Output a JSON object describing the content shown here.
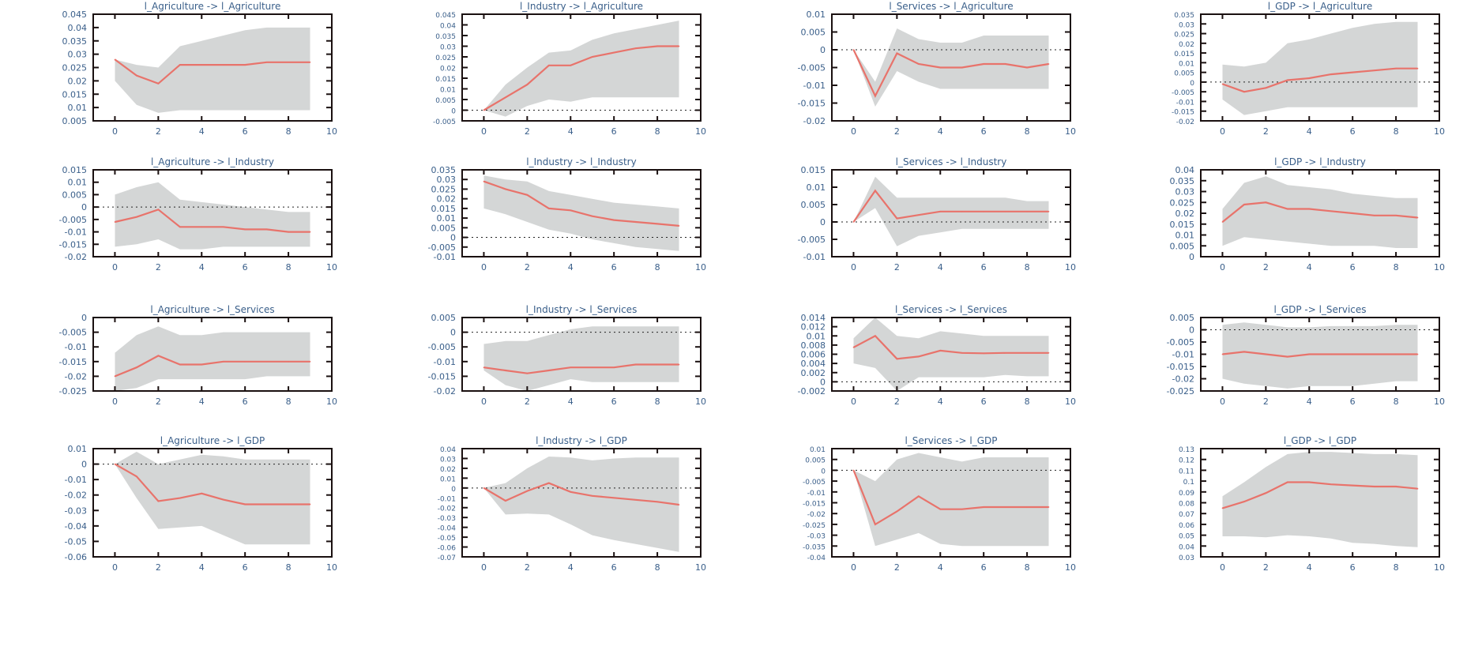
{
  "colors": {
    "response_line": "#e8736b",
    "band": "#d4d6d6",
    "axis": "#1a1010",
    "tick_label": "#3a5f8a",
    "title": "#3a5f8a"
  },
  "chart_data": [
    {
      "type": "area",
      "title": "l_Agriculture -> l_Agriculture",
      "x": [
        0,
        1,
        2,
        3,
        4,
        5,
        6,
        7,
        8,
        9
      ],
      "response": [
        0.028,
        0.022,
        0.019,
        0.026,
        0.026,
        0.026,
        0.026,
        0.027,
        0.027,
        0.027
      ],
      "upper": [
        0.028,
        0.026,
        0.025,
        0.033,
        0.035,
        0.037,
        0.039,
        0.04,
        0.04,
        0.04
      ],
      "lower": [
        0.02,
        0.011,
        0.008,
        0.009,
        0.009,
        0.009,
        0.009,
        0.009,
        0.009,
        0.009
      ],
      "xlim": [
        -1,
        10
      ],
      "ylim": [
        0.005,
        0.045
      ],
      "xticks": [
        "0",
        "2",
        "4",
        "6",
        "8",
        "10"
      ],
      "yticks": [
        "0.005",
        "0.01",
        "0.015",
        "0.02",
        "0.025",
        "0.03",
        "0.035",
        "0.04",
        "0.045"
      ],
      "zero_line": false
    },
    {
      "type": "area",
      "title": "l_Industry -> l_Agriculture",
      "x": [
        0,
        1,
        2,
        3,
        4,
        5,
        6,
        7,
        8,
        9
      ],
      "response": [
        0.0,
        0.006,
        0.012,
        0.021,
        0.021,
        0.025,
        0.027,
        0.029,
        0.03,
        0.03
      ],
      "upper": [
        0.0,
        0.012,
        0.02,
        0.027,
        0.028,
        0.033,
        0.036,
        0.038,
        0.04,
        0.042
      ],
      "lower": [
        0.0,
        -0.003,
        0.002,
        0.005,
        0.004,
        0.006,
        0.006,
        0.006,
        0.006,
        0.006
      ],
      "xlim": [
        -1,
        10
      ],
      "ylim": [
        -0.005,
        0.045
      ],
      "xticks": [
        "0",
        "2",
        "4",
        "6",
        "8",
        "10"
      ],
      "yticks": [
        "-0.005",
        "0",
        "0.005",
        "0.01",
        "0.015",
        "0.02",
        "0.025",
        "0.03",
        "0.035",
        "0.04",
        "0.045"
      ],
      "zero_line": true
    },
    {
      "type": "area",
      "title": "l_Services -> l_Agriculture",
      "x": [
        0,
        1,
        2,
        3,
        4,
        5,
        6,
        7,
        8,
        9
      ],
      "response": [
        0.0,
        -0.013,
        -0.001,
        -0.004,
        -0.005,
        -0.005,
        -0.004,
        -0.004,
        -0.005,
        -0.004
      ],
      "upper": [
        0.0,
        -0.009,
        0.006,
        0.003,
        0.002,
        0.002,
        0.004,
        0.004,
        0.004,
        0.004
      ],
      "lower": [
        0.0,
        -0.016,
        -0.006,
        -0.009,
        -0.011,
        -0.011,
        -0.011,
        -0.011,
        -0.011,
        -0.011
      ],
      "xlim": [
        -1,
        10
      ],
      "ylim": [
        -0.02,
        0.01
      ],
      "xticks": [
        "0",
        "2",
        "4",
        "6",
        "8",
        "10"
      ],
      "yticks": [
        "-0.02",
        "-0.015",
        "-0.01",
        "-0.005",
        "0",
        "0.005",
        "0.01"
      ],
      "zero_line": true
    },
    {
      "type": "area",
      "title": "l_GDP -> l_Agriculture",
      "x": [
        0,
        1,
        2,
        3,
        4,
        5,
        6,
        7,
        8,
        9
      ],
      "response": [
        -0.001,
        -0.005,
        -0.003,
        0.001,
        0.002,
        0.004,
        0.005,
        0.006,
        0.007,
        0.007
      ],
      "upper": [
        0.009,
        0.008,
        0.01,
        0.02,
        0.022,
        0.025,
        0.028,
        0.03,
        0.031,
        0.031
      ],
      "lower": [
        -0.009,
        -0.017,
        -0.015,
        -0.013,
        -0.013,
        -0.013,
        -0.013,
        -0.013,
        -0.013,
        -0.013
      ],
      "xlim": [
        -1,
        10
      ],
      "ylim": [
        -0.02,
        0.035
      ],
      "xticks": [
        "0",
        "2",
        "4",
        "6",
        "8",
        "10"
      ],
      "yticks": [
        "-0.02",
        "-0.015",
        "-0.01",
        "-0.005",
        "0",
        "0.005",
        "0.01",
        "0.015",
        "0.02",
        "0.025",
        "0.03",
        "0.035"
      ],
      "zero_line": true
    },
    {
      "type": "area",
      "title": "l_Agriculture -> l_Industry",
      "x": [
        0,
        1,
        2,
        3,
        4,
        5,
        6,
        7,
        8,
        9
      ],
      "response": [
        -0.006,
        -0.004,
        -0.001,
        -0.008,
        -0.008,
        -0.008,
        -0.009,
        -0.009,
        -0.01,
        -0.01
      ],
      "upper": [
        0.005,
        0.008,
        0.01,
        0.003,
        0.002,
        0.001,
        0.0,
        -0.001,
        -0.002,
        -0.002
      ],
      "lower": [
        -0.016,
        -0.015,
        -0.013,
        -0.017,
        -0.017,
        -0.016,
        -0.016,
        -0.016,
        -0.016,
        -0.016
      ],
      "xlim": [
        -1,
        10
      ],
      "ylim": [
        -0.02,
        0.015
      ],
      "xticks": [
        "0",
        "2",
        "4",
        "6",
        "8",
        "10"
      ],
      "yticks": [
        "-0.02",
        "-0.015",
        "-0.01",
        "-0.005",
        "0",
        "0.005",
        "0.01",
        "0.015"
      ],
      "zero_line": true
    },
    {
      "type": "area",
      "title": "l_Industry -> l_Industry",
      "x": [
        0,
        1,
        2,
        3,
        4,
        5,
        6,
        7,
        8,
        9
      ],
      "response": [
        0.029,
        0.025,
        0.022,
        0.015,
        0.014,
        0.011,
        0.009,
        0.008,
        0.007,
        0.006
      ],
      "upper": [
        0.032,
        0.03,
        0.029,
        0.024,
        0.022,
        0.02,
        0.018,
        0.017,
        0.016,
        0.015
      ],
      "lower": [
        0.015,
        0.012,
        0.008,
        0.004,
        0.002,
        -0.001,
        -0.003,
        -0.005,
        -0.006,
        -0.007
      ],
      "xlim": [
        -1,
        10
      ],
      "ylim": [
        -0.01,
        0.035
      ],
      "xticks": [
        "0",
        "2",
        "4",
        "6",
        "8",
        "10"
      ],
      "yticks": [
        "-0.01",
        "-0.005",
        "0",
        "0.005",
        "0.01",
        "0.015",
        "0.02",
        "0.025",
        "0.03",
        "0.035"
      ],
      "zero_line": true
    },
    {
      "type": "area",
      "title": "l_Services -> l_Industry",
      "x": [
        0,
        1,
        2,
        3,
        4,
        5,
        6,
        7,
        8,
        9
      ],
      "response": [
        0.0,
        0.009,
        0.001,
        0.002,
        0.003,
        0.003,
        0.003,
        0.003,
        0.003,
        0.003
      ],
      "upper": [
        0.0,
        0.013,
        0.007,
        0.007,
        0.007,
        0.007,
        0.007,
        0.007,
        0.006,
        0.006
      ],
      "lower": [
        0.0,
        0.004,
        -0.007,
        -0.004,
        -0.003,
        -0.002,
        -0.002,
        -0.002,
        -0.002,
        -0.002
      ],
      "xlim": [
        -1,
        10
      ],
      "ylim": [
        -0.01,
        0.015
      ],
      "xticks": [
        "0",
        "2",
        "4",
        "6",
        "8",
        "10"
      ],
      "yticks": [
        "-0.01",
        "-0.005",
        "0",
        "0.005",
        "0.01",
        "0.015"
      ],
      "zero_line": true
    },
    {
      "type": "area",
      "title": "l_GDP -> l_Industry",
      "x": [
        0,
        1,
        2,
        3,
        4,
        5,
        6,
        7,
        8,
        9
      ],
      "response": [
        0.016,
        0.024,
        0.025,
        0.022,
        0.022,
        0.021,
        0.02,
        0.019,
        0.019,
        0.018
      ],
      "upper": [
        0.022,
        0.034,
        0.037,
        0.033,
        0.032,
        0.031,
        0.029,
        0.028,
        0.027,
        0.027
      ],
      "lower": [
        0.005,
        0.009,
        0.008,
        0.007,
        0.006,
        0.005,
        0.005,
        0.005,
        0.004,
        0.004
      ],
      "xlim": [
        -1,
        10
      ],
      "ylim": [
        0,
        0.04
      ],
      "xticks": [
        "0",
        "2",
        "4",
        "6",
        "8",
        "10"
      ],
      "yticks": [
        "0",
        "0.005",
        "0.01",
        "0.015",
        "0.02",
        "0.025",
        "0.03",
        "0.035",
        "0.04"
      ],
      "zero_line": false
    },
    {
      "type": "area",
      "title": "l_Agriculture -> l_Services",
      "x": [
        0,
        1,
        2,
        3,
        4,
        5,
        6,
        7,
        8,
        9
      ],
      "response": [
        -0.02,
        -0.017,
        -0.013,
        -0.016,
        -0.016,
        -0.015,
        -0.015,
        -0.015,
        -0.015,
        -0.015
      ],
      "upper": [
        -0.012,
        -0.006,
        -0.003,
        -0.006,
        -0.006,
        -0.005,
        -0.005,
        -0.005,
        -0.005,
        -0.005
      ],
      "lower": [
        -0.025,
        -0.024,
        -0.021,
        -0.021,
        -0.021,
        -0.021,
        -0.021,
        -0.02,
        -0.02,
        -0.02
      ],
      "xlim": [
        -1,
        10
      ],
      "ylim": [
        -0.025,
        0
      ],
      "xticks": [
        "0",
        "2",
        "4",
        "6",
        "8",
        "10"
      ],
      "yticks": [
        "-0.025",
        "-0.02",
        "-0.015",
        "-0.01",
        "-0.005",
        "0"
      ],
      "zero_line": false
    },
    {
      "type": "area",
      "title": "l_Industry -> l_Services",
      "x": [
        0,
        1,
        2,
        3,
        4,
        5,
        6,
        7,
        8,
        9
      ],
      "response": [
        -0.012,
        -0.013,
        -0.014,
        -0.013,
        -0.012,
        -0.012,
        -0.012,
        -0.011,
        -0.011,
        -0.011
      ],
      "upper": [
        -0.004,
        -0.003,
        -0.003,
        -0.001,
        0.001,
        0.002,
        0.002,
        0.002,
        0.002,
        0.002
      ],
      "lower": [
        -0.013,
        -0.018,
        -0.02,
        -0.018,
        -0.016,
        -0.017,
        -0.017,
        -0.017,
        -0.017,
        -0.017
      ],
      "xlim": [
        -1,
        10
      ],
      "ylim": [
        -0.02,
        0.005
      ],
      "xticks": [
        "0",
        "2",
        "4",
        "6",
        "8",
        "10"
      ],
      "yticks": [
        "-0.02",
        "-0.015",
        "-0.01",
        "-0.005",
        "0",
        "0.005"
      ],
      "zero_line": true
    },
    {
      "type": "area",
      "title": "l_Services -> l_Services",
      "x": [
        0,
        1,
        2,
        3,
        4,
        5,
        6,
        7,
        8,
        9
      ],
      "response": [
        0.0075,
        0.01,
        0.005,
        0.0055,
        0.0068,
        0.0063,
        0.0062,
        0.0063,
        0.0063,
        0.0063
      ],
      "upper": [
        0.0095,
        0.014,
        0.01,
        0.0095,
        0.011,
        0.0105,
        0.01,
        0.01,
        0.01,
        0.01
      ],
      "lower": [
        0.004,
        0.003,
        -0.002,
        0.001,
        0.001,
        0.001,
        0.001,
        0.0015,
        0.0012,
        0.0012
      ],
      "xlim": [
        -1,
        10
      ],
      "ylim": [
        -0.002,
        0.014
      ],
      "xticks": [
        "0",
        "2",
        "4",
        "6",
        "8",
        "10"
      ],
      "yticks": [
        "-0.002",
        "0",
        "0.002",
        "0.004",
        "0.006",
        "0.008",
        "0.01",
        "0.012",
        "0.014"
      ],
      "zero_line": true
    },
    {
      "type": "area",
      "title": "l_GDP -> l_Services",
      "x": [
        0,
        1,
        2,
        3,
        4,
        5,
        6,
        7,
        8,
        9
      ],
      "response": [
        -0.01,
        -0.009,
        -0.01,
        -0.011,
        -0.01,
        -0.01,
        -0.01,
        -0.01,
        -0.01,
        -0.01
      ],
      "upper": [
        0.002,
        0.003,
        0.002,
        0.001,
        0.001,
        0.0015,
        0.0015,
        0.0015,
        0.002,
        0.002
      ],
      "lower": [
        -0.02,
        -0.022,
        -0.023,
        -0.024,
        -0.023,
        -0.023,
        -0.023,
        -0.022,
        -0.021,
        -0.021
      ],
      "xlim": [
        -1,
        10
      ],
      "ylim": [
        -0.025,
        0.005
      ],
      "xticks": [
        "0",
        "2",
        "4",
        "6",
        "8",
        "10"
      ],
      "yticks": [
        "-0.025",
        "-0.02",
        "-0.015",
        "-0.01",
        "-0.005",
        "0",
        "0.005"
      ],
      "zero_line": true
    },
    {
      "type": "area",
      "title": "l_Agriculture -> l_GDP",
      "x": [
        0,
        1,
        2,
        3,
        4,
        5,
        6,
        7,
        8,
        9
      ],
      "response": [
        0.0,
        -0.008,
        -0.024,
        -0.022,
        -0.019,
        -0.023,
        -0.026,
        -0.026,
        -0.026,
        -0.026
      ],
      "upper": [
        0.0,
        0.008,
        0.0,
        0.003,
        0.006,
        0.005,
        0.003,
        0.003,
        0.003,
        0.003
      ],
      "lower": [
        0.0,
        -0.022,
        -0.042,
        -0.041,
        -0.04,
        -0.046,
        -0.052,
        -0.052,
        -0.052,
        -0.052
      ],
      "xlim": [
        -1,
        10
      ],
      "ylim": [
        -0.06,
        0.01
      ],
      "xticks": [
        "0",
        "2",
        "4",
        "6",
        "8",
        "10"
      ],
      "yticks": [
        "-0.06",
        "-0.05",
        "-0.04",
        "-0.03",
        "-0.02",
        "-0.01",
        "0",
        "0.01"
      ],
      "zero_line": true
    },
    {
      "type": "area",
      "title": "l_Industry -> l_GDP",
      "x": [
        0,
        1,
        2,
        3,
        4,
        5,
        6,
        7,
        8,
        9
      ],
      "response": [
        0.0,
        -0.013,
        -0.003,
        0.005,
        -0.004,
        -0.008,
        -0.01,
        -0.012,
        -0.014,
        -0.017
      ],
      "upper": [
        0.0,
        0.005,
        0.02,
        0.032,
        0.031,
        0.028,
        0.03,
        0.031,
        0.031,
        0.031
      ],
      "lower": [
        0.0,
        -0.027,
        -0.026,
        -0.027,
        -0.037,
        -0.048,
        -0.053,
        -0.057,
        -0.061,
        -0.065
      ],
      "xlim": [
        -1,
        10
      ],
      "ylim": [
        -0.07,
        0.04
      ],
      "xticks": [
        "0",
        "2",
        "4",
        "6",
        "8",
        "10"
      ],
      "yticks": [
        "-0.07",
        "-0.06",
        "-0.05",
        "-0.04",
        "-0.03",
        "-0.02",
        "-0.01",
        "0",
        "0.01",
        "0.02",
        "0.03",
        "0.04"
      ],
      "zero_line": true
    },
    {
      "type": "area",
      "title": "l_Services -> l_GDP",
      "x": [
        0,
        1,
        2,
        3,
        4,
        5,
        6,
        7,
        8,
        9
      ],
      "response": [
        0.0,
        -0.025,
        -0.019,
        -0.012,
        -0.018,
        -0.018,
        -0.017,
        -0.017,
        -0.017,
        -0.017
      ],
      "upper": [
        0.0,
        -0.005,
        0.005,
        0.008,
        0.006,
        0.004,
        0.006,
        0.006,
        0.006,
        0.006
      ],
      "lower": [
        0.0,
        -0.035,
        -0.032,
        -0.029,
        -0.034,
        -0.035,
        -0.035,
        -0.035,
        -0.035,
        -0.035
      ],
      "xlim": [
        -1,
        10
      ],
      "ylim": [
        -0.04,
        0.01
      ],
      "xticks": [
        "0",
        "2",
        "4",
        "6",
        "8",
        "10"
      ],
      "yticks": [
        "-0.04",
        "-0.035",
        "-0.03",
        "-0.025",
        "-0.02",
        "-0.015",
        "-0.01",
        "-0.005",
        "0",
        "0.005",
        "0.01"
      ],
      "zero_line": true
    },
    {
      "type": "area",
      "title": "l_GDP -> l_GDP",
      "x": [
        0,
        1,
        2,
        3,
        4,
        5,
        6,
        7,
        8,
        9
      ],
      "response": [
        0.075,
        0.081,
        0.089,
        0.099,
        0.099,
        0.097,
        0.096,
        0.095,
        0.095,
        0.093
      ],
      "upper": [
        0.086,
        0.099,
        0.113,
        0.125,
        0.127,
        0.127,
        0.126,
        0.125,
        0.125,
        0.124
      ],
      "lower": [
        0.049,
        0.049,
        0.048,
        0.05,
        0.049,
        0.047,
        0.043,
        0.042,
        0.04,
        0.039
      ],
      "xlim": [
        -1,
        10
      ],
      "ylim": [
        0.03,
        0.13
      ],
      "xticks": [
        "0",
        "2",
        "4",
        "6",
        "8",
        "10"
      ],
      "yticks": [
        "0.03",
        "0.04",
        "0.05",
        "0.06",
        "0.07",
        "0.08",
        "0.09",
        "0.1",
        "0.11",
        "0.12",
        "0.13"
      ],
      "zero_line": false
    }
  ]
}
